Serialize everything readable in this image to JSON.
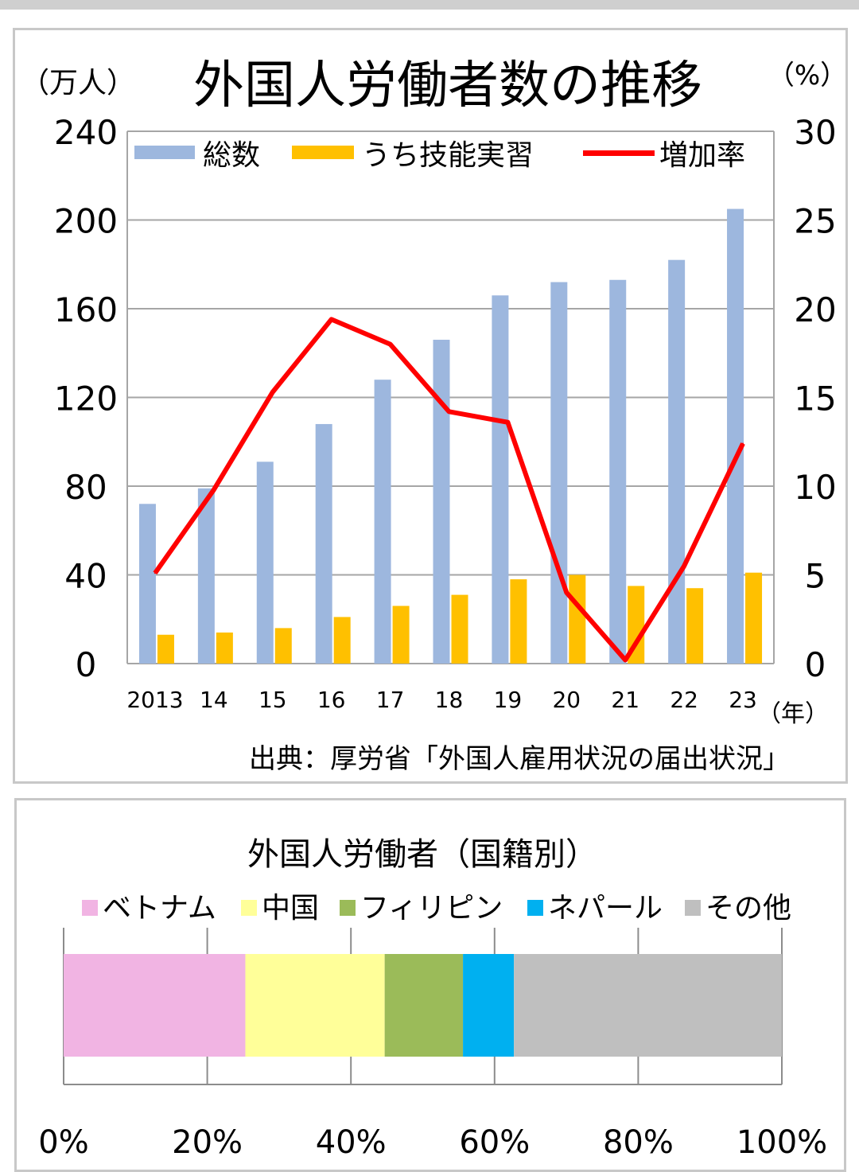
{
  "chart_data": [
    {
      "type": "bar+line",
      "title": "外国人労働者数の推移",
      "ylabel_left": "（万人）",
      "ylabel_right": "（%）",
      "xlabel": "（年）",
      "categories": [
        "2013",
        "14",
        "15",
        "16",
        "17",
        "18",
        "19",
        "20",
        "21",
        "22",
        "23"
      ],
      "left_ticks": [
        "0",
        "40",
        "80",
        "120",
        "160",
        "200",
        "240"
      ],
      "right_ticks": [
        "0",
        "5",
        "10",
        "15",
        "20",
        "25",
        "30"
      ],
      "ylim_left": [
        0,
        240
      ],
      "ylim_right": [
        0,
        30
      ],
      "series": [
        {
          "name": "総数",
          "kind": "bar",
          "axis": "left",
          "color": "#9db7de",
          "values": [
            72,
            79,
            91,
            108,
            128,
            146,
            166,
            172,
            173,
            182,
            205
          ]
        },
        {
          "name": "うち技能実習",
          "kind": "bar",
          "axis": "left",
          "color": "#ffc000",
          "values": [
            13,
            14,
            16,
            21,
            26,
            31,
            38,
            40,
            35,
            34,
            41
          ]
        },
        {
          "name": "増加率",
          "kind": "line",
          "axis": "right",
          "color": "#ff0000",
          "values": [
            5.1,
            9.8,
            15.3,
            19.4,
            18.0,
            14.2,
            13.6,
            4.0,
            0.2,
            5.5,
            12.4
          ]
        }
      ],
      "source": "出典：厚労省「外国人雇用状況の届出状況」"
    },
    {
      "type": "stacked-bar",
      "title": "外国人労働者（国籍別）",
      "xlim": [
        0,
        100
      ],
      "xticks": [
        "0%",
        "20%",
        "40%",
        "60%",
        "80%",
        "100%"
      ],
      "series": [
        {
          "name": "ベトナム",
          "color": "#f1b4e3",
          "value": 25.3
        },
        {
          "name": "中国",
          "color": "#ffff99",
          "value": 19.4
        },
        {
          "name": "フィリピン",
          "color": "#9bbb59",
          "value": 10.9
        },
        {
          "name": "ネパール",
          "color": "#00b0f0",
          "value": 7.1
        },
        {
          "name": "その他",
          "color": "#bfbfbf",
          "value": 37.3
        }
      ]
    }
  ]
}
